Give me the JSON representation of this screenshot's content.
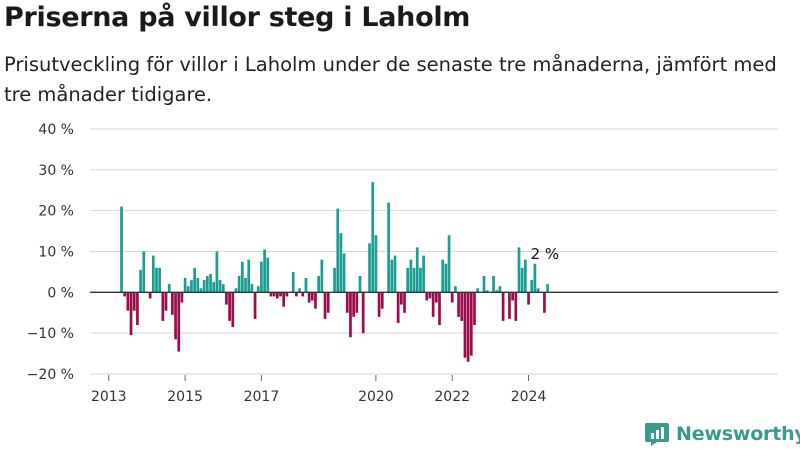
{
  "header": {
    "title": "Priserna på villor steg i Laholm",
    "subtitle": "Prisutveckling för villor i Laholm under de senaste tre månaderna, jämfört med tre månader tidigare."
  },
  "brand": {
    "name": "Newsworthy",
    "icon": "newsworthy-logo-icon",
    "color": "#3a9a8e"
  },
  "colors": {
    "positive": "#1a9e93",
    "negative": "#9c0c4d",
    "grid": "#d6d6d6",
    "zero_line": "#333333"
  },
  "chart_data": {
    "type": "bar",
    "unit": "%",
    "x_ticks": [
      "2013",
      "2015",
      "2017",
      "2020",
      "2022",
      "2024"
    ],
    "y_ticks": [
      "40 %",
      "30 %",
      "20 %",
      "10 %",
      "0 %",
      "−10 %",
      "−20 %"
    ],
    "ylim": [
      -20,
      40
    ],
    "grid": true,
    "last_value_label": "2 %",
    "values": [
      21,
      -1,
      -4.5,
      -10.5,
      -4.5,
      -8,
      5.5,
      10,
      null,
      -1.5,
      9,
      6,
      6,
      -7,
      -4.5,
      2,
      -5.5,
      -11.5,
      -14.5,
      -2.5,
      3.5,
      1.5,
      3,
      6,
      3.5,
      1,
      3,
      4,
      4.5,
      2.5,
      10,
      3,
      2,
      -3,
      -7,
      -8.5,
      1,
      4,
      7.5,
      3.5,
      8,
      2,
      -6.5,
      1.5,
      7.5,
      10.5,
      8.5,
      -1,
      -1,
      -1.5,
      -1,
      -3.5,
      -1,
      null,
      5,
      -1,
      1,
      -1,
      3.5,
      -2.5,
      -2,
      -4,
      4,
      8,
      -6.5,
      -5,
      null,
      6,
      20.5,
      14.5,
      9.5,
      -5,
      -11,
      -6,
      -5,
      4,
      -10,
      null,
      12,
      27,
      14,
      -6,
      -4,
      null,
      22,
      8,
      9,
      -7.5,
      -3,
      -5,
      6,
      8,
      6,
      11,
      6,
      9,
      -2,
      -1.5,
      -6,
      -2.5,
      -8,
      8,
      7,
      14,
      -2.5,
      1.5,
      -6,
      -7,
      -16,
      -17,
      -15.5,
      -8,
      1,
      null,
      4,
      0.5,
      null,
      4,
      0.5,
      1.5,
      -7,
      null,
      -6.5,
      -2,
      -7,
      11,
      6,
      8,
      -3,
      3,
      7,
      1,
      null,
      -5,
      2
    ],
    "series_month_range": [
      "2013-05",
      "2024-11"
    ]
  }
}
